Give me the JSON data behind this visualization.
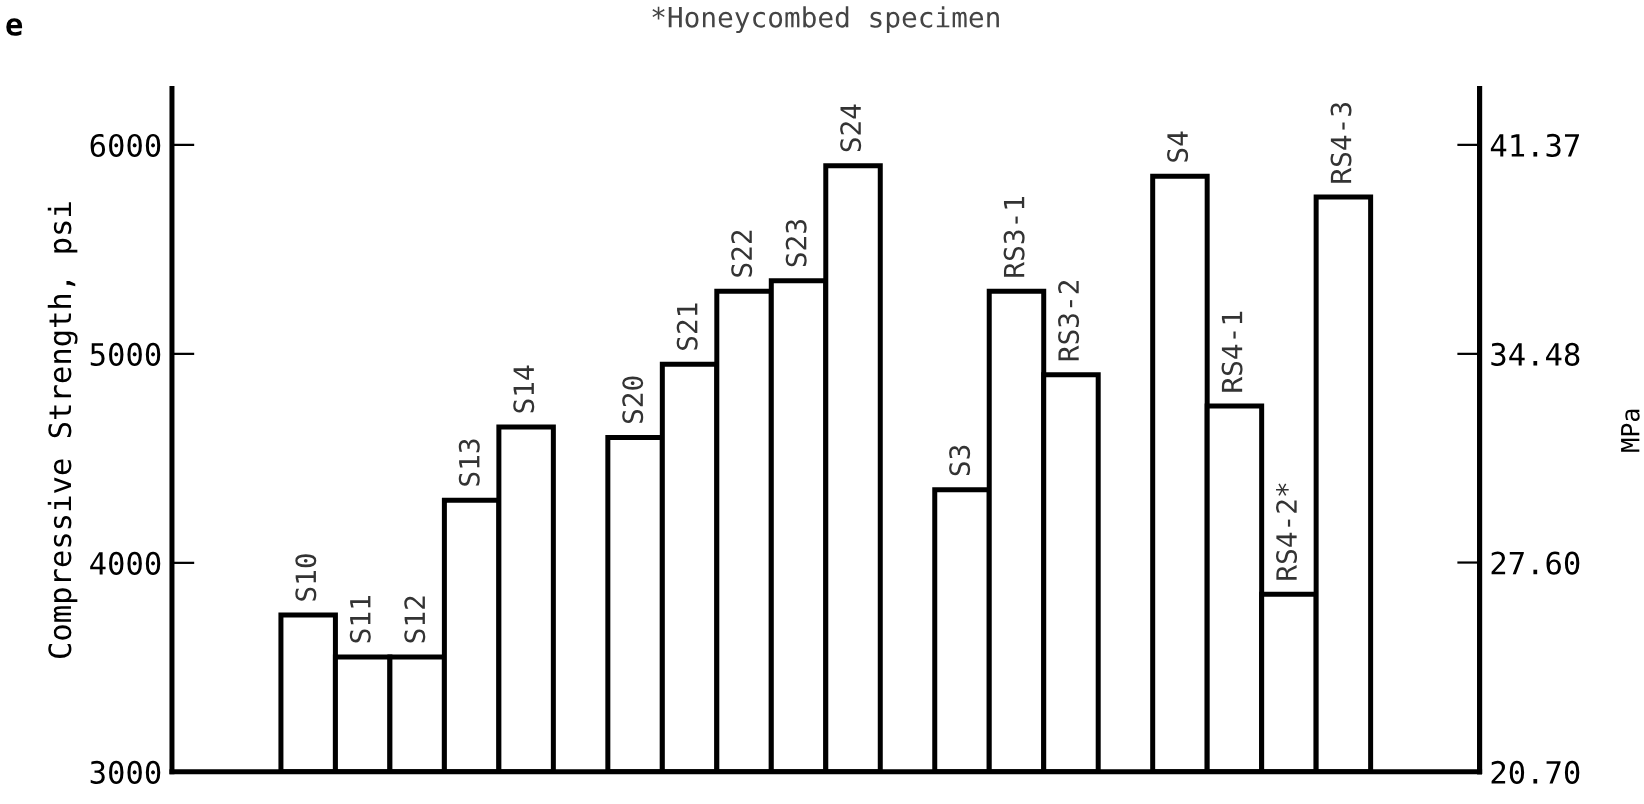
{
  "chart_data": {
    "type": "bar",
    "subtitle": "*Honeycombed specimen",
    "annotations": [
      "e"
    ],
    "ylabel": "Compressive Strength, psi",
    "y2label": "MPa",
    "categories": [
      null,
      null,
      "S10",
      "S11",
      "S12",
      "S13",
      "S14",
      null,
      "S20",
      "S21",
      "S22",
      "S23",
      "S24",
      null,
      "S3",
      "RS3-1",
      "RS3-2",
      null,
      "S4",
      "RS4-1",
      "RS4-2*",
      "RS4-3",
      null,
      null
    ],
    "values": [
      null,
      null,
      3750,
      3550,
      3550,
      4300,
      4650,
      null,
      4600,
      4950,
      5300,
      5350,
      5900,
      null,
      4350,
      5300,
      4900,
      null,
      5850,
      4750,
      3850,
      5750,
      null,
      null
    ],
    "color": "#ffffff",
    "ylim": [
      3000,
      6270
    ],
    "yticks": [
      3000,
      4000,
      5000,
      6000
    ],
    "y2lim": [
      20.7,
      43.23
    ],
    "y2ticks": [
      {
        "value": 20.7,
        "label": "20.70"
      },
      {
        "value": 27.6,
        "label": "27.60"
      },
      {
        "value": 34.48,
        "label": "34.48"
      },
      {
        "value": 41.37,
        "label": "41.37"
      }
    ],
    "grid": false,
    "legend": false
  }
}
